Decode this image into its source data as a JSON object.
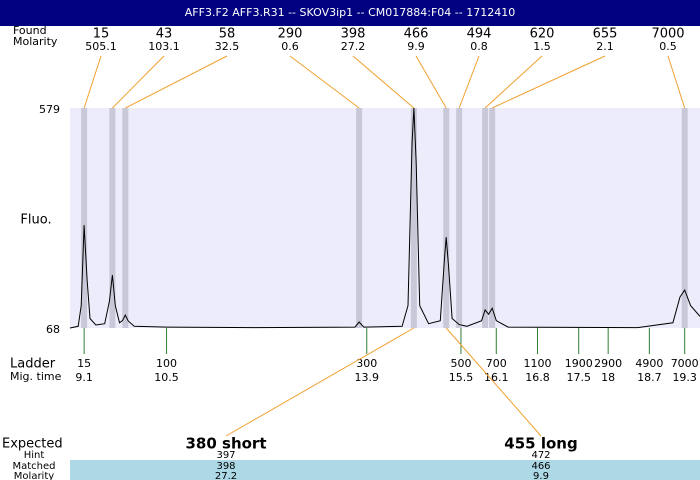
{
  "chart_data": {
    "type": "electropherogram",
    "title": "AFF3.F2  AFF3.R31 -- SKOV3ip1 -- CM017884:F04 -- 1712410",
    "ylabel": "Fluo.",
    "ylim": [
      68,
      579
    ],
    "yticks": [
      68,
      579
    ],
    "xlim": [
      8.86,
      19.56
    ],
    "trace": {
      "x": [
        8.86,
        9.0,
        9.05,
        9.1,
        9.15,
        9.2,
        9.3,
        9.45,
        9.53,
        9.58,
        9.63,
        9.7,
        9.75,
        9.8,
        9.85,
        9.95,
        10.5,
        12,
        13.7,
        13.77,
        13.85,
        14.5,
        14.6,
        14.67,
        14.7,
        14.74,
        14.8,
        14.95,
        15.15,
        15.22,
        15.25,
        15.29,
        15.35,
        15.47,
        15.6,
        15.85,
        15.91,
        15.97,
        16.03,
        16.1,
        16.3,
        18.5,
        19.1,
        19.22,
        19.3,
        19.4,
        19.56
      ],
      "values": [
        68,
        72,
        120,
        307,
        180,
        90,
        75,
        78,
        130,
        191,
        120,
        80,
        85,
        98,
        84,
        72,
        70,
        69,
        70,
        82,
        70,
        72,
        120,
        500,
        579,
        450,
        120,
        78,
        85,
        230,
        279,
        210,
        90,
        76,
        72,
        85,
        110,
        100,
        114,
        85,
        70,
        69,
        80,
        140,
        156,
        120,
        95
      ]
    },
    "peaks": {
      "row_labels": [
        "Found",
        "Molarity"
      ],
      "times": [
        9.1,
        9.58,
        9.8,
        13.77,
        14.7,
        15.25,
        15.47,
        15.91,
        16.03,
        19.3
      ],
      "sizes": [
        15,
        43,
        58,
        290,
        398,
        466,
        494,
        620,
        655,
        7000
      ],
      "molarity": [
        505.1,
        103.1,
        32.5,
        0.6,
        27.2,
        9.9,
        0.8,
        1.5,
        2.1,
        0.5
      ]
    },
    "ladder": {
      "row_labels": [
        "Ladder",
        "Mig. time"
      ],
      "sizes": [
        15,
        100,
        300,
        500,
        700,
        1100,
        1900,
        2900,
        4900,
        7000
      ],
      "times": [
        9.1,
        10.5,
        13.9,
        15.5,
        16.1,
        16.8,
        17.5,
        18,
        18.7,
        19.3
      ]
    },
    "expected": {
      "row_labels": [
        "Expected",
        "Hint",
        "Matched",
        "Molarity"
      ],
      "labels": [
        "380 short",
        "455 long"
      ],
      "hint": [
        397,
        472
      ],
      "matched": [
        398,
        466
      ],
      "molarity": [
        27.2,
        9.9
      ]
    }
  }
}
